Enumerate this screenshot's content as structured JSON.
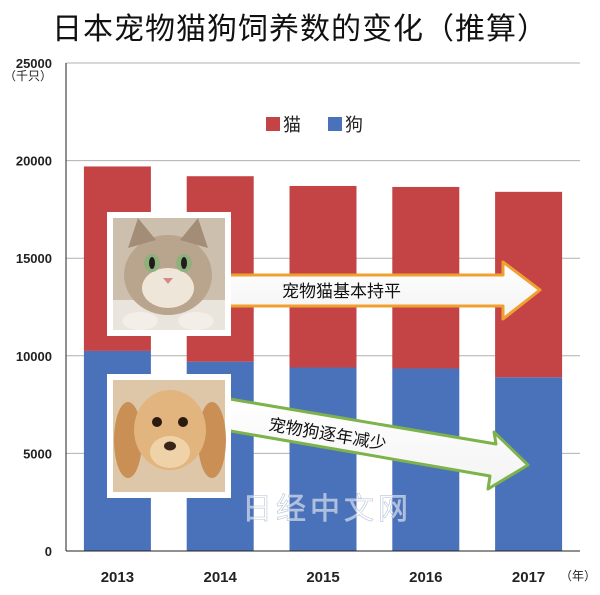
{
  "chart_data": {
    "type": "bar",
    "stacked": true,
    "title": "日本宠物猫狗饲养数的变化（推算）",
    "ylabel": "（千只）",
    "xlabel": "（年）",
    "categories": [
      "2013",
      "2014",
      "2015",
      "2016",
      "2017"
    ],
    "series": [
      {
        "name": "狗",
        "color": "#4a72bb",
        "values": [
          10250,
          9700,
          9400,
          9350,
          8900
        ]
      },
      {
        "name": "猫",
        "color": "#c44345",
        "values": [
          9450,
          9500,
          9300,
          9300,
          9500
        ]
      }
    ],
    "ylim": [
      0,
      25000
    ],
    "yticks": [
      "0",
      "5000",
      "10000",
      "15000",
      "20000",
      "25000"
    ],
    "grid": true,
    "legend": "top-center",
    "annotations": {
      "cat_note": "宠物猫基本持平",
      "dog_note": "宠物狗逐年减少"
    },
    "watermark": "日经中文网"
  }
}
